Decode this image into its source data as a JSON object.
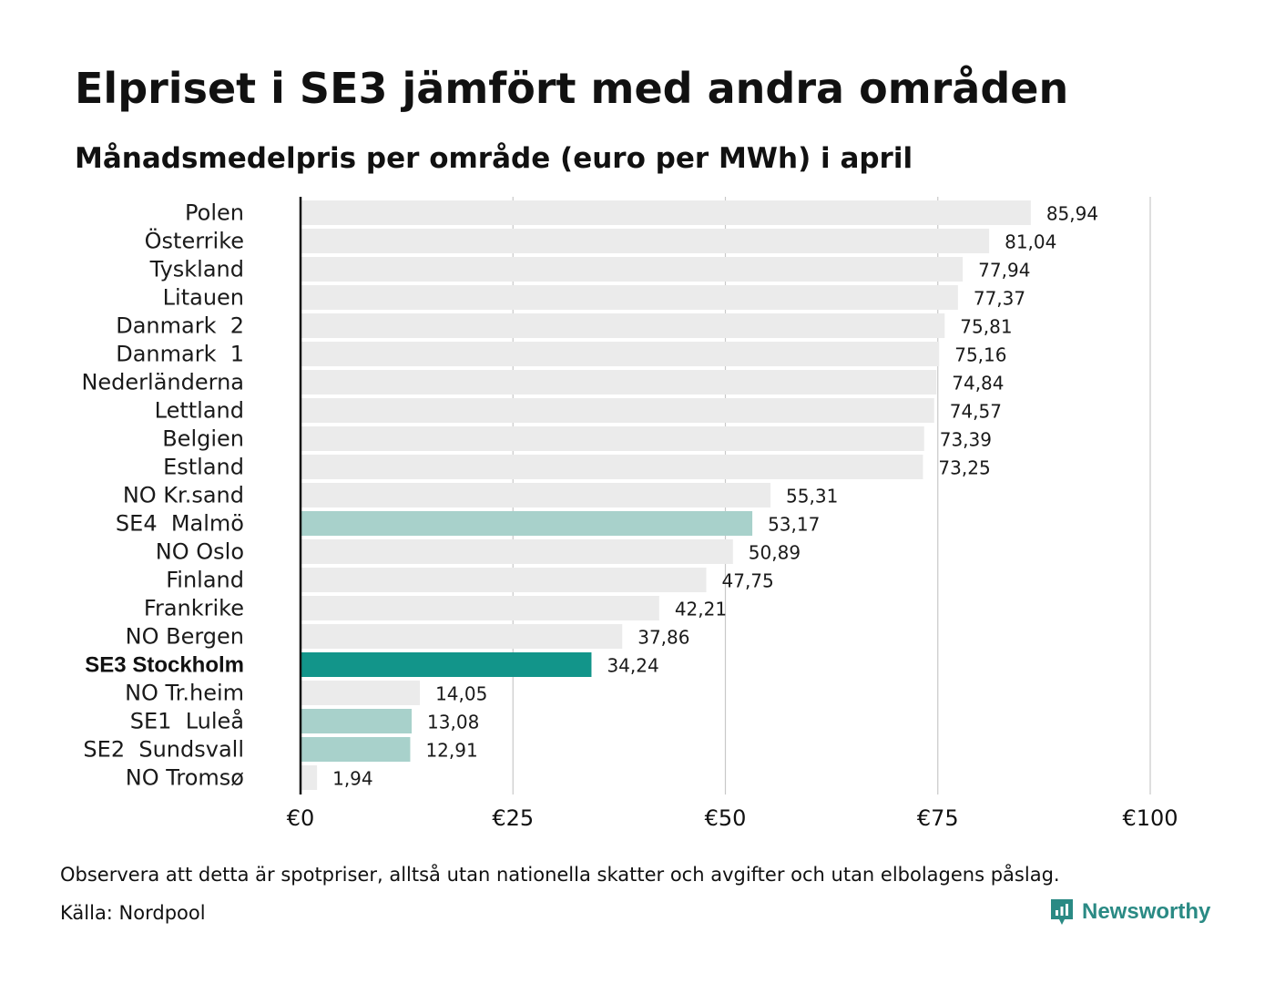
{
  "title": "Elpriset i SE3 jämfört med andra områden",
  "subtitle": "Månadsmedelpris per område (euro per MWh) i april",
  "footnote": "Observera att detta är spotpriser, alltså utan nationella skatter och avgifter och utan elbolagens påslag.",
  "source": "Källa: Nordpool",
  "brand": {
    "name": "Newsworthy",
    "icon": "newsworthy-logo-icon"
  },
  "colors": {
    "default_bar": "#ebebeb",
    "se_bar": "#a8d1cb",
    "highlight_bar": "#12958a",
    "axis": "#111111",
    "grid": "#c8c8c8",
    "brand": "#2a8a84"
  },
  "chart_data": {
    "type": "bar",
    "orientation": "horizontal",
    "categories": [
      "Polen",
      "Österrike",
      "Tyskland",
      "Litauen",
      "Danmark  2",
      "Danmark  1",
      "Nederländerna",
      "Lettland",
      "Belgien",
      "Estland",
      "NO Kr.sand",
      "SE4  Malmö",
      "NO Oslo",
      "Finland",
      "Frankrike",
      "NO Bergen",
      "SE3 Stockholm",
      "NO Tr.heim",
      "SE1  Luleå",
      "SE2  Sundsvall",
      "NO Tromsø"
    ],
    "values": [
      85.94,
      81.04,
      77.94,
      77.37,
      75.81,
      75.16,
      74.84,
      74.57,
      73.39,
      73.25,
      55.31,
      53.17,
      50.89,
      47.75,
      42.21,
      37.86,
      34.24,
      14.05,
      13.08,
      12.91,
      1.94
    ],
    "value_labels": [
      "85,94",
      "81,04",
      "77,94",
      "77,37",
      "75,81",
      "75,16",
      "74,84",
      "74,57",
      "73,39",
      "73,25",
      "55,31",
      "53,17",
      "50,89",
      "47,75",
      "42,21",
      "37,86",
      "34,24",
      "14,05",
      "13,08",
      "12,91",
      "1,94"
    ],
    "bar_style": [
      "default",
      "default",
      "default",
      "default",
      "default",
      "default",
      "default",
      "default",
      "default",
      "default",
      "default",
      "se",
      "default",
      "default",
      "default",
      "default",
      "highlight",
      "default",
      "se",
      "se",
      "default"
    ],
    "xlim": [
      0,
      100
    ],
    "xticks": [
      0,
      25,
      50,
      75,
      100
    ],
    "xtick_labels": [
      "€0",
      "€25",
      "€50",
      "€75",
      "€100"
    ],
    "grid": true,
    "legend": "none"
  }
}
